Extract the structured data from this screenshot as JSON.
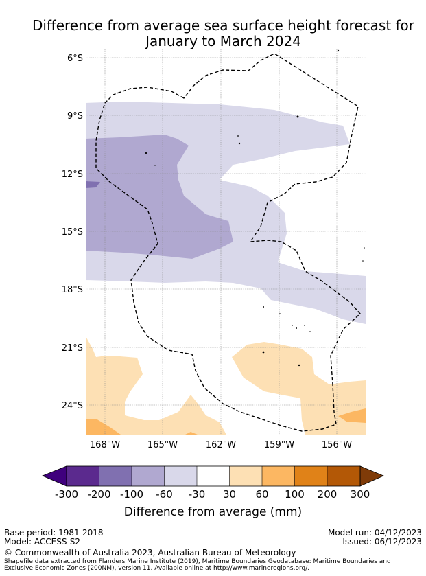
{
  "title": {
    "line1": "Difference from average sea surface height forecast for",
    "line2": "January to March 2024"
  },
  "map": {
    "lat_ticks": [
      "6°S",
      "9°S",
      "12°S",
      "15°S",
      "18°S",
      "21°S",
      "24°S"
    ],
    "lon_ticks": [
      "168°W",
      "165°W",
      "162°W",
      "159°W",
      "156°W"
    ]
  },
  "colorbar": {
    "title": "Difference from average (mm)",
    "tick_labels": [
      "-300",
      "-200",
      "-100",
      "-60",
      "-30",
      "30",
      "60",
      "100",
      "200",
      "300"
    ],
    "colors": [
      "#3f007d",
      "#5b2a8e",
      "#8070b0",
      "#b0a8d0",
      "#d9d8ea",
      "#ffffff",
      "#fde0b4",
      "#fcb762",
      "#e08218",
      "#b35806",
      "#7f3b08"
    ]
  },
  "footer": {
    "base_period": "Base period: 1981-2018",
    "model": "Model: ACCESS-S2",
    "model_run": "Model run: 04/12/2023",
    "issued": "Issued: 06/12/2023",
    "copyright": "© Commonwealth of Australia 2023, Australian Bureau of Meteorology",
    "shapefile_line1": "Shapefile data extracted from Flanders Marine Institute (2019), Maritime Boundaries Geodatabase: Maritime Boundaries and",
    "shapefile_line2": "Exclusive Economic Zones (200NM), version 11. Available online at http://www.marineregions.org/."
  }
}
